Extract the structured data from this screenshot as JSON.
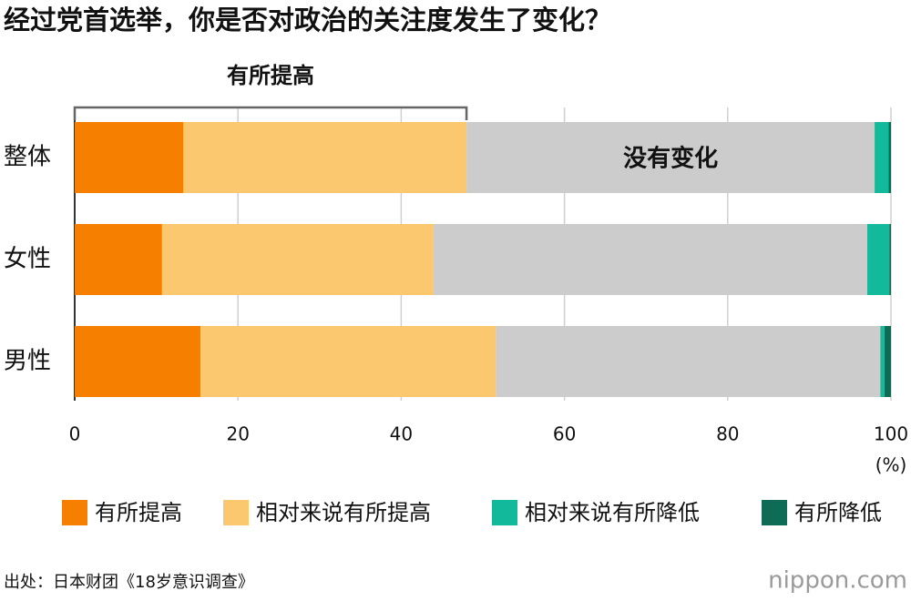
{
  "chart_data": {
    "type": "stacked-bar-horizontal",
    "title": "经过党首选举，你是否对政治的关注度发生了变化？",
    "categories": [
      "整体",
      "女性",
      "男性"
    ],
    "series": [
      {
        "name": "有所提高",
        "color": "#f77f00",
        "values": [
          13.3,
          10.7,
          15.4
        ]
      },
      {
        "name": "相对来说有所提高",
        "color": "#fbc86f",
        "values": [
          34.7,
          33.2,
          36.2
        ]
      },
      {
        "name": "没有变化",
        "color": "#cccccc",
        "values": [
          50.0,
          53.2,
          47.1
        ],
        "label_in_bar": true
      },
      {
        "name": "相对来说有所降低",
        "color": "#12b99a",
        "values": [
          1.7,
          2.7,
          0.5
        ]
      },
      {
        "name": "有所降低",
        "color": "#0e6b55",
        "values": [
          0.3,
          0.2,
          0.8
        ]
      }
    ],
    "bracket_label": "有所提高",
    "xlim": [
      0,
      100
    ],
    "xticks": [
      0,
      20,
      40,
      60,
      80,
      100
    ],
    "x_unit": "(%)",
    "grid": true,
    "source": "出处：日本财团《18岁意识调查》",
    "logo": "nippon.com"
  }
}
